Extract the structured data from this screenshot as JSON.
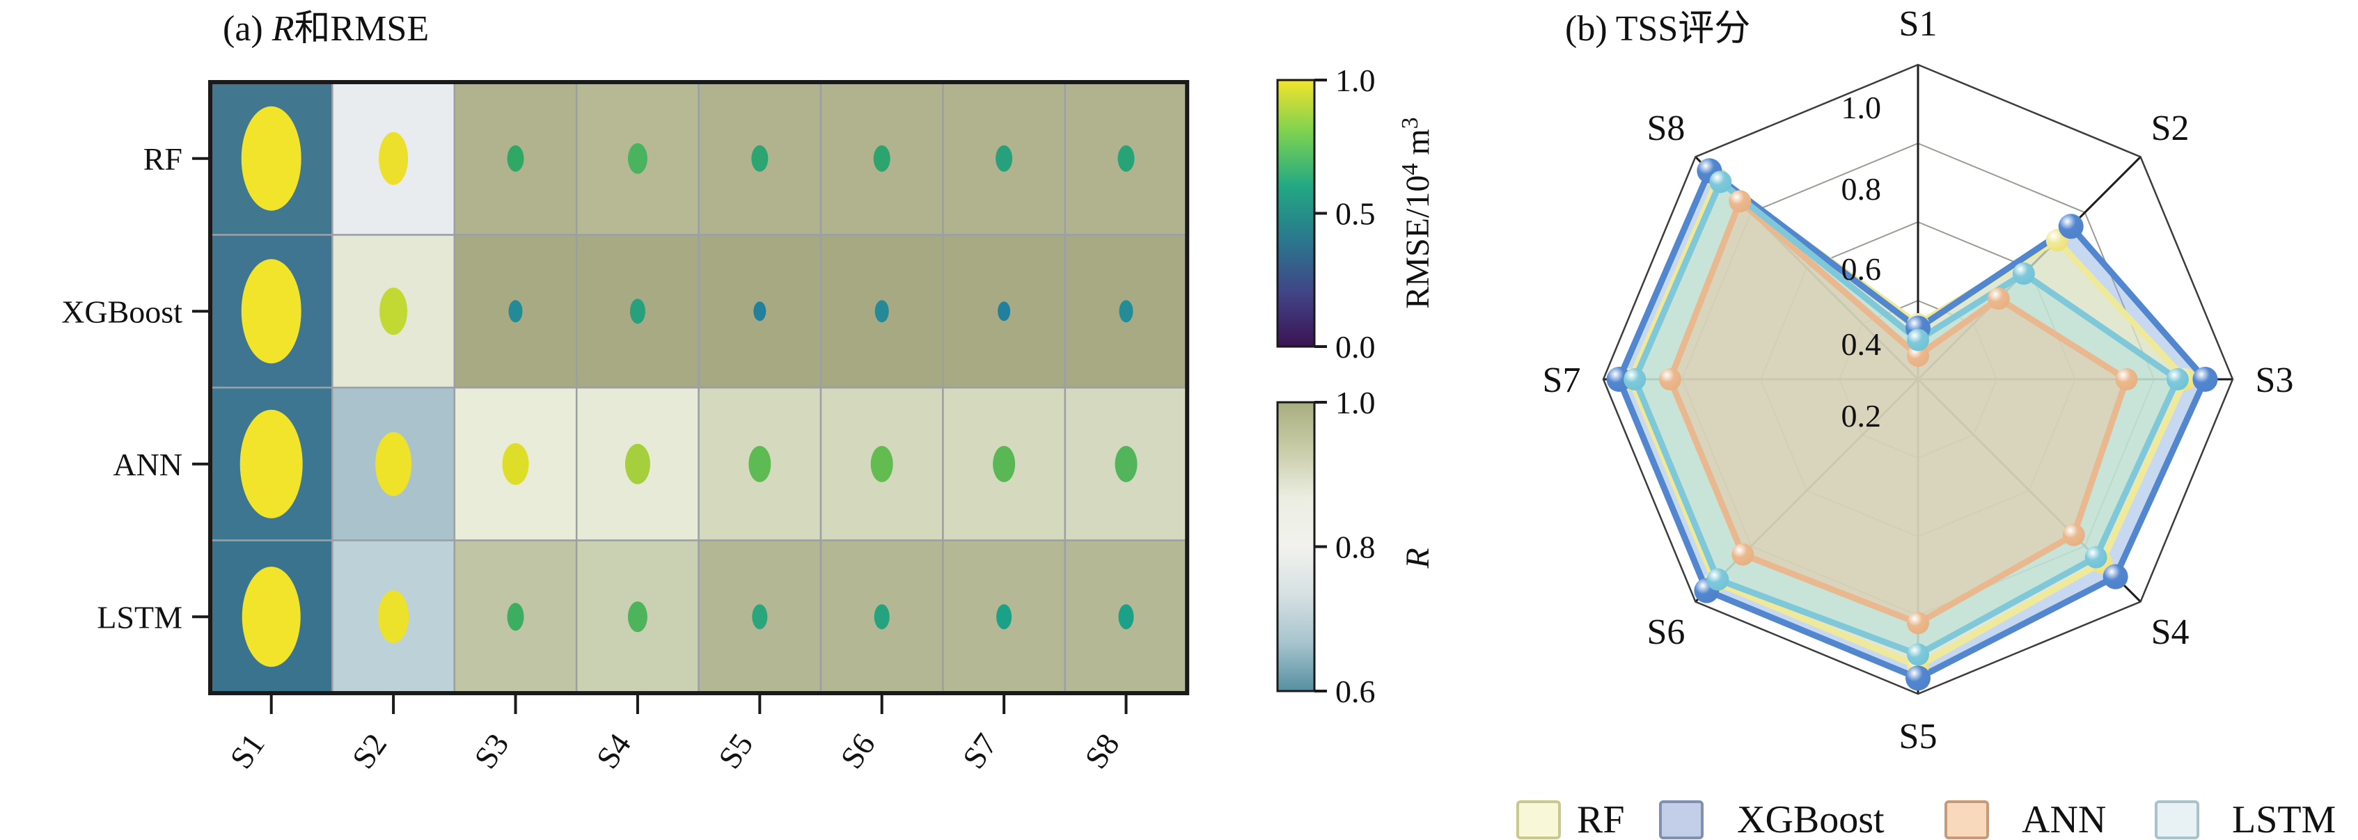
{
  "accent_colors": {
    "rf": "#efe99a",
    "xgboost": "#5286cf",
    "ann": "#eab88e",
    "lstm": "#7fc8da",
    "heatmap_border": "#1a1a1a",
    "grid_gray": "#9aa0a6"
  },
  "panel_a": {
    "title": {
      "prefix": "(a) ",
      "italic": "R",
      "suffix": "和RMSE"
    },
    "row_labels": [
      "RF",
      "XGBoost",
      "ANN",
      "LSTM"
    ],
    "col_labels": [
      "S1",
      "S2",
      "S3",
      "S4",
      "S5",
      "S6",
      "S7",
      "S8"
    ],
    "colorbar_rmse": {
      "ticks": [
        "1.0",
        "0.5",
        "0.0"
      ],
      "label_parts": [
        {
          "t": "RMSE/10",
          "sup": false
        },
        {
          "t": "4",
          "sup": true
        },
        {
          "t": " m",
          "sup": false
        },
        {
          "t": "3",
          "sup": true
        }
      ],
      "gradient_top_to_bottom": [
        "#f4e32b",
        "#7ad151",
        "#22a884",
        "#2a788e",
        "#414487",
        "#3b1353"
      ]
    },
    "colorbar_r": {
      "ticks": [
        "1.0",
        "0.8",
        "0.6"
      ],
      "label_italic": "R",
      "gradient_top_to_bottom": [
        "#a9ae7f",
        "#c9cda9",
        "#eceee2",
        "#f1f2ee",
        "#d6e0e2",
        "#a7c4cd",
        "#558fa2"
      ]
    }
  },
  "panel_b": {
    "title": {
      "prefix": "(b) ",
      "italic": "",
      "suffix": "TSS评分"
    },
    "legend": [
      {
        "label": "RF",
        "fill": "#f8f7d8",
        "border": "#c9c98f"
      },
      {
        "label": "XGBoost",
        "fill": "#c3cfe8",
        "border": "#8090b0"
      },
      {
        "label": "ANN",
        "fill": "#f9d9bc",
        "border": "#c89a78"
      },
      {
        "label": "LSTM",
        "fill": "#e8f1f4",
        "border": "#a9c3cb"
      }
    ]
  },
  "chart_data": [
    {
      "type": "heatmap",
      "title": "(a) R和RMSE",
      "rows": [
        "RF",
        "XGBoost",
        "ANN",
        "LSTM"
      ],
      "columns": [
        "S1",
        "S2",
        "S3",
        "S4",
        "S5",
        "S6",
        "S7",
        "S8"
      ],
      "cell_metric": "R",
      "cell_R_values": [
        [
          0.62,
          0.8,
          0.93,
          0.92,
          0.93,
          0.93,
          0.93,
          0.93
        ],
        [
          0.61,
          0.83,
          0.95,
          0.95,
          0.95,
          0.95,
          0.95,
          0.95
        ],
        [
          0.61,
          0.74,
          0.84,
          0.84,
          0.87,
          0.87,
          0.87,
          0.87
        ],
        [
          0.61,
          0.77,
          0.9,
          0.89,
          0.92,
          0.92,
          0.92,
          0.92
        ]
      ],
      "cell_colors": [
        [
          "#41788f",
          "#e9ecee",
          "#b0b38d",
          "#b7b994",
          "#b0b38d",
          "#b0b38d",
          "#b0b38d",
          "#b0b38e"
        ],
        [
          "#3f7590",
          "#e4e8d4",
          "#a7aa83",
          "#a7aa83",
          "#a6a982",
          "#a6a982",
          "#a7aa83",
          "#a7aa83"
        ],
        [
          "#3c7690",
          "#a9c2cb",
          "#e9ecd9",
          "#e7ead7",
          "#d5dabf",
          "#d4d9be",
          "#d5dabf",
          "#d4d9bf"
        ],
        [
          "#3a738e",
          "#bdd2d8",
          "#c0c5a5",
          "#cad0b2",
          "#b3b793",
          "#b3b793",
          "#b4b894",
          "#b4b895"
        ]
      ],
      "dot_metric": "RMSE/10^4 m^3",
      "dot_RMSE_values": [
        [
          0.97,
          0.95,
          0.57,
          0.62,
          0.53,
          0.55,
          0.5,
          0.51
        ],
        [
          0.97,
          0.85,
          0.45,
          0.52,
          0.4,
          0.42,
          0.4,
          0.42
        ],
        [
          0.98,
          0.96,
          0.9,
          0.8,
          0.7,
          0.7,
          0.69,
          0.67
        ],
        [
          0.97,
          0.94,
          0.58,
          0.62,
          0.52,
          0.5,
          0.48,
          0.48
        ]
      ],
      "dot_colors": [
        [
          "#f2e32b",
          "#ede02c",
          "#30a865",
          "#4ab35f",
          "#2ca573",
          "#2ca46e",
          "#26a17b",
          "#28a277"
        ],
        [
          "#f2e32b",
          "#c2d934",
          "#228b95",
          "#27a17d",
          "#23809d",
          "#258a97",
          "#21809e",
          "#248c96"
        ],
        [
          "#f2e32b",
          "#efe32a",
          "#dede28",
          "#a5cf3c",
          "#5eba52",
          "#63bc50",
          "#59b754",
          "#52b45b"
        ],
        [
          "#f2e32b",
          "#ece12b",
          "#3cae61",
          "#4db45c",
          "#2ba57c",
          "#25a280",
          "#1ba188",
          "#1ba188"
        ]
      ],
      "dot_rx": [
        [
          43,
          21,
          12,
          14,
          12,
          12,
          12,
          12
        ],
        [
          43,
          20,
          10,
          11,
          9,
          10,
          9,
          10
        ],
        [
          45,
          26,
          19,
          18,
          16,
          16,
          16,
          16
        ],
        [
          42,
          22,
          12,
          14,
          11,
          11,
          11,
          11
        ]
      ],
      "dot_ry": [
        [
          75,
          38,
          19,
          22,
          19,
          19,
          19,
          19
        ],
        [
          75,
          34,
          16,
          18,
          14,
          16,
          14,
          16
        ],
        [
          78,
          46,
          30,
          29,
          26,
          26,
          26,
          26
        ],
        [
          72,
          38,
          20,
          22,
          18,
          18,
          18,
          18
        ]
      ],
      "colorbars": [
        {
          "label": "RMSE/10⁴ m³",
          "ticks": [
            1.0,
            0.5,
            0.0
          ],
          "range": [
            0.0,
            1.0
          ]
        },
        {
          "label": "R",
          "ticks": [
            1.0,
            0.8,
            0.6
          ],
          "range": [
            0.6,
            1.0
          ]
        }
      ]
    },
    {
      "type": "radar",
      "title": "(b) TSS评分",
      "categories": [
        "S1",
        "S2",
        "S3",
        "S4",
        "S5",
        "S6",
        "S7",
        "S8"
      ],
      "radial_ticks": [
        "1.0",
        "0.8",
        "0.6",
        "0.4",
        "0.2"
      ],
      "rmin": 0.2,
      "rmax": 1.0,
      "grid": true,
      "legend_position": "bottom",
      "series": [
        {
          "name": "RF",
          "values": [
            0.34,
            0.7,
            0.88,
            0.86,
            0.93,
            0.93,
            0.93,
            0.92
          ],
          "line": "#efe99a",
          "marker": "#efe070",
          "fill": "#f7f4b5",
          "fill_opacity": 0.55
        },
        {
          "name": "XGBoost",
          "values": [
            0.33,
            0.75,
            0.93,
            0.91,
            0.96,
            0.96,
            0.96,
            0.95
          ],
          "line": "#5286cf",
          "marker": "#4d82cc",
          "fill": "#8fb2e4",
          "fill_opacity": 0.5
        },
        {
          "name": "ANN",
          "values": [
            0.26,
            0.49,
            0.73,
            0.76,
            0.82,
            0.83,
            0.83,
            0.84
          ],
          "line": "#eab88e",
          "marker": "#e8b080",
          "fill": "#eec49e",
          "fill_opacity": 0.45
        },
        {
          "name": "LSTM",
          "values": [
            0.3,
            0.58,
            0.86,
            0.84,
            0.9,
            0.92,
            0.92,
            0.91
          ],
          "line": "#7fc8da",
          "marker": "#6ec3d8",
          "fill": "#b3e0dd",
          "fill_opacity": 0.55
        }
      ]
    }
  ]
}
